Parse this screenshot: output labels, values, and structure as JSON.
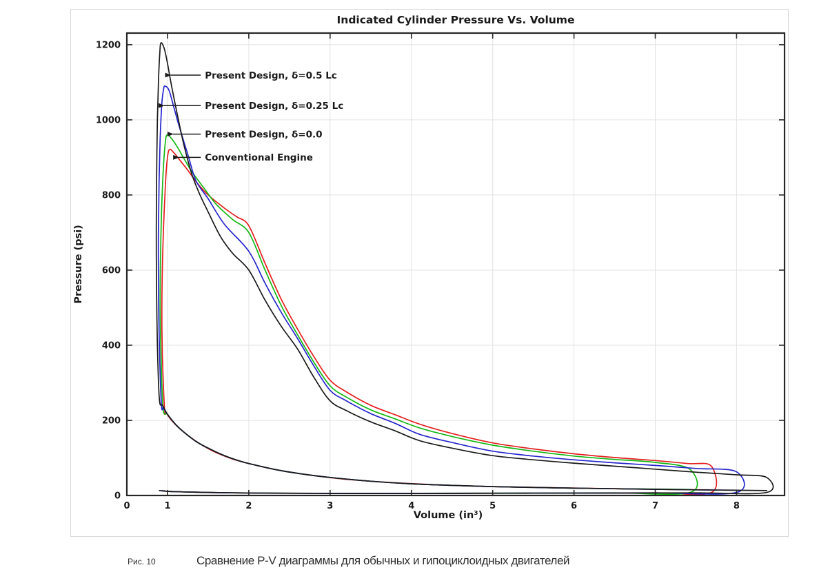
{
  "figure": {
    "caption_label": "Рис. 10",
    "caption_text": "Сравнение P-V диаграммы для обычных и гипоциклоидных двигателей"
  },
  "chart_data": {
    "type": "line",
    "title": "Indicated Cylinder Pressure Vs. Volume",
    "xlabel": "Volume (in³)",
    "ylabel": "Pressure (psi)",
    "xlim": [
      0.5,
      8.59
    ],
    "ylim": [
      0,
      1231
    ],
    "x_ticks": [
      0,
      1,
      2,
      3,
      4,
      5,
      6,
      7,
      8
    ],
    "y_ticks": [
      0,
      200,
      400,
      600,
      800,
      1000,
      1200
    ],
    "grid": true,
    "legend_position": "annotated-arrows-inside-plot",
    "annotations": [
      {
        "text": "Present Design, δ=0.5 Lc",
        "pressure": 1119,
        "v_text": 1.46,
        "v_tip": 1.02
      },
      {
        "text": "Present Design, δ=0.25 Lc",
        "pressure": 1038,
        "v_text": 1.46,
        "v_tip": 0.94
      },
      {
        "text": "Present Design, δ=0.0",
        "pressure": 962,
        "v_text": 1.46,
        "v_tip": 1.05
      },
      {
        "text": "Conventional Engine",
        "pressure": 900,
        "v_text": 1.46,
        "v_tip": 1.12
      }
    ],
    "series": [
      {
        "name": "Conventional Engine",
        "color": "#e31d1d",
        "peak_pressure_psi": 920,
        "peak_volume_in3": 1.02,
        "max_volume_in3": 7.69,
        "expansion_end_pressure_psi": 78,
        "points": [
          [
            7.69,
            15
          ],
          [
            7.2,
            16
          ],
          [
            6.7,
            17.5
          ],
          [
            6.2,
            19
          ],
          [
            5.7,
            21
          ],
          [
            5.2,
            23
          ],
          [
            4.7,
            25.5
          ],
          [
            4.2,
            29.5
          ],
          [
            3.7,
            35
          ],
          [
            3.2,
            43
          ],
          [
            2.9,
            50
          ],
          [
            2.6,
            59
          ],
          [
            2.3,
            70
          ],
          [
            2.0,
            85
          ],
          [
            1.8,
            97
          ],
          [
            1.6,
            114
          ],
          [
            1.45,
            131
          ],
          [
            1.3,
            152
          ],
          [
            1.15,
            178
          ],
          [
            1.05,
            200
          ],
          [
            0.99,
            218
          ],
          [
            0.965,
            228
          ],
          [
            0.94,
            350
          ],
          [
            0.931,
            460
          ],
          [
            0.933,
            560
          ],
          [
            0.946,
            680
          ],
          [
            0.966,
            790
          ],
          [
            0.99,
            880
          ],
          [
            1.02,
            920
          ],
          [
            1.08,
            912
          ],
          [
            1.15,
            893
          ],
          [
            1.25,
            866
          ],
          [
            1.35,
            836
          ],
          [
            1.5,
            800
          ],
          [
            1.7,
            765
          ],
          [
            1.85,
            742
          ],
          [
            2.0,
            718
          ],
          [
            2.2,
            618
          ],
          [
            2.4,
            522
          ],
          [
            2.6,
            443
          ],
          [
            2.8,
            370
          ],
          [
            3.0,
            307
          ],
          [
            3.2,
            276
          ],
          [
            3.5,
            240
          ],
          [
            3.8,
            215
          ],
          [
            4.1,
            190
          ],
          [
            4.5,
            165
          ],
          [
            5.0,
            140
          ],
          [
            5.5,
            124
          ],
          [
            6.0,
            111
          ],
          [
            6.5,
            101
          ],
          [
            7.0,
            93
          ],
          [
            7.4,
            85
          ],
          [
            7.69,
            78
          ],
          [
            7.69,
            8
          ],
          [
            7.0,
            7
          ],
          [
            6.0,
            6.5
          ],
          [
            5.0,
            6
          ],
          [
            4.0,
            5.5
          ],
          [
            3.0,
            5.5
          ],
          [
            2.2,
            6
          ],
          [
            1.6,
            7.5
          ],
          [
            1.2,
            9.5
          ],
          [
            1.0,
            11
          ],
          [
            0.96,
            13
          ]
        ]
      },
      {
        "name": "Present Design, δ=0.0",
        "color": "#14b714",
        "peak_pressure_psi": 960,
        "peak_volume_in3": 0.995,
        "max_volume_in3": 7.43,
        "expansion_end_pressure_psi": 69,
        "points": [
          [
            7.43,
            16
          ],
          [
            7.0,
            17
          ],
          [
            6.5,
            18
          ],
          [
            6.0,
            19.5
          ],
          [
            5.5,
            21.5
          ],
          [
            5.0,
            23.5
          ],
          [
            4.5,
            27
          ],
          [
            4.0,
            31
          ],
          [
            3.5,
            38
          ],
          [
            3.0,
            48
          ],
          [
            2.7,
            56
          ],
          [
            2.4,
            66
          ],
          [
            2.1,
            80
          ],
          [
            1.9,
            91
          ],
          [
            1.7,
            106
          ],
          [
            1.5,
            126
          ],
          [
            1.35,
            144
          ],
          [
            1.2,
            169
          ],
          [
            1.1,
            189
          ],
          [
            1.0,
            216
          ],
          [
            0.945,
            232
          ],
          [
            0.92,
            380
          ],
          [
            0.91,
            500
          ],
          [
            0.913,
            620
          ],
          [
            0.926,
            750
          ],
          [
            0.947,
            862
          ],
          [
            0.972,
            938
          ],
          [
            0.995,
            960
          ],
          [
            1.05,
            950
          ],
          [
            1.12,
            928
          ],
          [
            1.2,
            898
          ],
          [
            1.3,
            862
          ],
          [
            1.45,
            818
          ],
          [
            1.6,
            775
          ],
          [
            1.8,
            735
          ],
          [
            2.0,
            700
          ],
          [
            2.2,
            600
          ],
          [
            2.4,
            505
          ],
          [
            2.6,
            428
          ],
          [
            2.8,
            355
          ],
          [
            3.0,
            292
          ],
          [
            3.2,
            262
          ],
          [
            3.5,
            228
          ],
          [
            3.8,
            204
          ],
          [
            4.1,
            180
          ],
          [
            4.5,
            157
          ],
          [
            5.0,
            134
          ],
          [
            5.5,
            118
          ],
          [
            6.0,
            105
          ],
          [
            6.5,
            96
          ],
          [
            7.0,
            88
          ],
          [
            7.43,
            69
          ],
          [
            7.43,
            8
          ],
          [
            6.5,
            7
          ],
          [
            5.5,
            6.5
          ],
          [
            4.5,
            6
          ],
          [
            3.5,
            5.5
          ],
          [
            2.5,
            6
          ],
          [
            1.8,
            7
          ],
          [
            1.3,
            9
          ],
          [
            1.0,
            11
          ],
          [
            0.94,
            13
          ]
        ]
      },
      {
        "name": "Present Design, δ=0.25 Lc",
        "color": "#2424cc",
        "peak_pressure_psi": 1090,
        "peak_volume_in3": 0.97,
        "max_volume_in3": 8.0,
        "expansion_end_pressure_psi": 63,
        "points": [
          [
            8.0,
            14
          ],
          [
            7.5,
            15
          ],
          [
            7.0,
            16.5
          ],
          [
            6.5,
            18
          ],
          [
            6.0,
            19.5
          ],
          [
            5.5,
            21.5
          ],
          [
            5.0,
            23.5
          ],
          [
            4.5,
            27
          ],
          [
            4.0,
            31
          ],
          [
            3.5,
            38
          ],
          [
            3.0,
            48
          ],
          [
            2.7,
            56
          ],
          [
            2.4,
            66
          ],
          [
            2.1,
            80
          ],
          [
            1.9,
            91
          ],
          [
            1.7,
            106
          ],
          [
            1.5,
            126
          ],
          [
            1.35,
            144
          ],
          [
            1.2,
            169
          ],
          [
            1.1,
            189
          ],
          [
            1.0,
            216
          ],
          [
            0.95,
            233
          ],
          [
            0.925,
            242
          ],
          [
            0.9,
            400
          ],
          [
            0.89,
            550
          ],
          [
            0.888,
            700
          ],
          [
            0.896,
            830
          ],
          [
            0.91,
            950
          ],
          [
            0.93,
            1042
          ],
          [
            0.952,
            1082
          ],
          [
            0.97,
            1090
          ],
          [
            1.02,
            1078
          ],
          [
            1.08,
            1032
          ],
          [
            1.15,
            978
          ],
          [
            1.25,
            908
          ],
          [
            1.35,
            838
          ],
          [
            1.5,
            790
          ],
          [
            1.7,
            722
          ],
          [
            2.0,
            650
          ],
          [
            2.2,
            565
          ],
          [
            2.4,
            487
          ],
          [
            2.6,
            418
          ],
          [
            2.8,
            345
          ],
          [
            3.0,
            280
          ],
          [
            3.2,
            252
          ],
          [
            3.5,
            218
          ],
          [
            3.8,
            192
          ],
          [
            4.1,
            163
          ],
          [
            4.5,
            141
          ],
          [
            5.0,
            118
          ],
          [
            5.5,
            105
          ],
          [
            6.0,
            95
          ],
          [
            6.5,
            87
          ],
          [
            7.0,
            80
          ],
          [
            7.5,
            72
          ],
          [
            8.0,
            63
          ],
          [
            8.0,
            8
          ],
          [
            7.0,
            7
          ],
          [
            6.0,
            6.5
          ],
          [
            5.0,
            6
          ],
          [
            4.0,
            5.5
          ],
          [
            3.0,
            5.5
          ],
          [
            2.2,
            6
          ],
          [
            1.6,
            7.5
          ],
          [
            1.2,
            9.5
          ],
          [
            1.0,
            11
          ],
          [
            0.92,
            13
          ]
        ]
      },
      {
        "name": "Present Design, δ=0.5 Lc",
        "color": "#1a1a1a",
        "peak_pressure_psi": 1205,
        "peak_volume_in3": 0.92,
        "max_volume_in3": 8.37,
        "expansion_end_pressure_psi": 48,
        "points": [
          [
            8.37,
            13
          ],
          [
            8.0,
            14
          ],
          [
            7.5,
            15
          ],
          [
            7.0,
            16.5
          ],
          [
            6.5,
            18
          ],
          [
            6.0,
            19.5
          ],
          [
            5.5,
            21.5
          ],
          [
            5.0,
            23.5
          ],
          [
            4.5,
            27
          ],
          [
            4.0,
            31
          ],
          [
            3.5,
            38
          ],
          [
            3.0,
            48
          ],
          [
            2.7,
            56
          ],
          [
            2.4,
            66
          ],
          [
            2.1,
            80
          ],
          [
            1.9,
            91
          ],
          [
            1.7,
            106
          ],
          [
            1.5,
            126
          ],
          [
            1.35,
            144
          ],
          [
            1.2,
            169
          ],
          [
            1.1,
            189
          ],
          [
            1.0,
            216
          ],
          [
            0.94,
            240
          ],
          [
            0.9,
            256
          ],
          [
            0.876,
            400
          ],
          [
            0.865,
            560
          ],
          [
            0.862,
            700
          ],
          [
            0.866,
            850
          ],
          [
            0.876,
            1000
          ],
          [
            0.89,
            1110
          ],
          [
            0.905,
            1178
          ],
          [
            0.92,
            1205
          ],
          [
            0.96,
            1190
          ],
          [
            1.0,
            1150
          ],
          [
            1.05,
            1090
          ],
          [
            1.12,
            1015
          ],
          [
            1.2,
            935
          ],
          [
            1.3,
            855
          ],
          [
            1.4,
            800
          ],
          [
            1.5,
            755
          ],
          [
            1.65,
            690
          ],
          [
            1.8,
            645
          ],
          [
            2.0,
            600
          ],
          [
            2.2,
            520
          ],
          [
            2.4,
            450
          ],
          [
            2.6,
            390
          ],
          [
            2.8,
            315
          ],
          [
            3.0,
            252
          ],
          [
            3.2,
            226
          ],
          [
            3.5,
            196
          ],
          [
            3.8,
            172
          ],
          [
            4.1,
            146
          ],
          [
            4.5,
            126
          ],
          [
            5.0,
            106
          ],
          [
            5.5,
            95
          ],
          [
            6.0,
            86
          ],
          [
            6.5,
            78
          ],
          [
            7.0,
            70
          ],
          [
            7.5,
            62
          ],
          [
            8.0,
            55
          ],
          [
            8.37,
            48
          ],
          [
            8.37,
            8
          ],
          [
            7.5,
            7
          ],
          [
            6.5,
            6.5
          ],
          [
            5.5,
            6
          ],
          [
            4.5,
            5.5
          ],
          [
            3.5,
            5.5
          ],
          [
            2.5,
            6
          ],
          [
            1.8,
            7
          ],
          [
            1.3,
            9
          ],
          [
            1.0,
            11
          ],
          [
            0.9,
            13
          ]
        ]
      }
    ]
  }
}
